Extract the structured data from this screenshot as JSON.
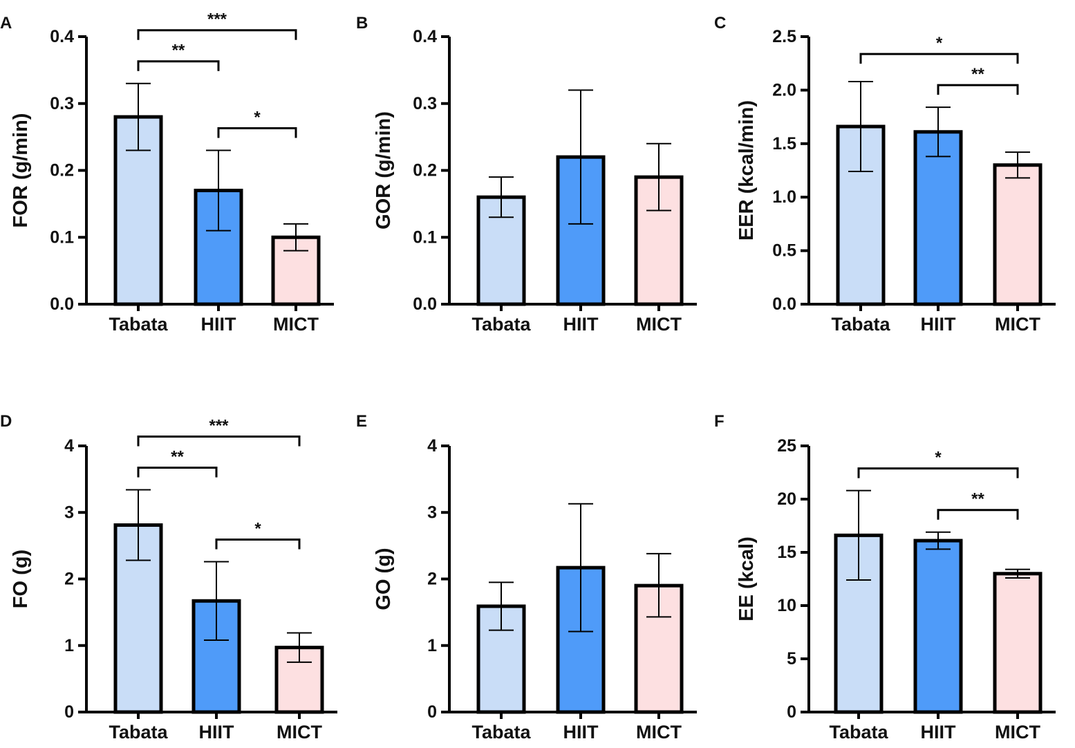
{
  "colors": {
    "tabata": "#c9ddf7",
    "hiit": "#4f9bf9",
    "mict": "#fde0e1",
    "stroke": "#000000"
  },
  "chart_data": [
    {
      "panel": "A",
      "type": "bar",
      "categories": [
        "Tabata",
        "HIIT",
        "MICT"
      ],
      "values": [
        0.28,
        0.17,
        0.1
      ],
      "error_upper": [
        0.33,
        0.23,
        0.12
      ],
      "error_lower": [
        0.23,
        0.11,
        0.08
      ],
      "ylabel": "FOR  (g/min)",
      "ylim": [
        0,
        0.4
      ],
      "yticks": [
        "0.0",
        "0.1",
        "0.2",
        "0.3",
        "0.4"
      ],
      "tick_values": [
        0,
        0.1,
        0.2,
        0.3,
        0.4
      ],
      "significance": [
        {
          "from": "Tabata",
          "to": "MICT",
          "label": "***"
        },
        {
          "from": "Tabata",
          "to": "HIIT",
          "label": "**"
        },
        {
          "from": "HIIT",
          "to": "MICT",
          "label": "*"
        }
      ]
    },
    {
      "panel": "B",
      "type": "bar",
      "categories": [
        "Tabata",
        "HIIT",
        "MICT"
      ],
      "values": [
        0.16,
        0.22,
        0.19
      ],
      "error_upper": [
        0.19,
        0.32,
        0.24
      ],
      "error_lower": [
        0.13,
        0.12,
        0.14
      ],
      "ylabel": "GOR  (g/min)",
      "ylim": [
        0,
        0.4
      ],
      "yticks": [
        "0.0",
        "0.1",
        "0.2",
        "0.3",
        "0.4"
      ],
      "tick_values": [
        0,
        0.1,
        0.2,
        0.3,
        0.4
      ],
      "significance": []
    },
    {
      "panel": "C",
      "type": "bar",
      "categories": [
        "Tabata",
        "HIIT",
        "MICT"
      ],
      "values": [
        1.66,
        1.61,
        1.3
      ],
      "error_upper": [
        2.08,
        1.84,
        1.42
      ],
      "error_lower": [
        1.24,
        1.38,
        1.18
      ],
      "ylabel": "EER  (kcal/min)",
      "ylim": [
        0,
        2.5
      ],
      "yticks": [
        "0.0",
        "0.5",
        "1.0",
        "1.5",
        "2.0",
        "2.5"
      ],
      "tick_values": [
        0,
        0.5,
        1.0,
        1.5,
        2.0,
        2.5
      ],
      "significance": [
        {
          "from": "Tabata",
          "to": "MICT",
          "label": "*"
        },
        {
          "from": "HIIT",
          "to": "MICT",
          "label": "**"
        }
      ]
    },
    {
      "panel": "D",
      "type": "bar",
      "categories": [
        "Tabata",
        "HIIT",
        "MICT"
      ],
      "values": [
        2.81,
        1.67,
        0.97
      ],
      "error_upper": [
        3.34,
        2.26,
        1.19
      ],
      "error_lower": [
        2.28,
        1.08,
        0.75
      ],
      "ylabel": "FO  (g)",
      "ylim": [
        0,
        4
      ],
      "yticks": [
        "0",
        "1",
        "2",
        "3",
        "4"
      ],
      "tick_values": [
        0,
        1,
        2,
        3,
        4
      ],
      "significance": [
        {
          "from": "Tabata",
          "to": "MICT",
          "label": "***"
        },
        {
          "from": "Tabata",
          "to": "HIIT",
          "label": "**"
        },
        {
          "from": "HIIT",
          "to": "MICT",
          "label": "*"
        }
      ]
    },
    {
      "panel": "E",
      "type": "bar",
      "categories": [
        "Tabata",
        "HIIT",
        "MICT"
      ],
      "values": [
        1.59,
        2.17,
        1.9
      ],
      "error_upper": [
        1.95,
        3.13,
        2.38
      ],
      "error_lower": [
        1.23,
        1.21,
        1.43
      ],
      "ylabel": "GO  (g)",
      "ylim": [
        0,
        4
      ],
      "yticks": [
        "0",
        "1",
        "2",
        "3",
        "4"
      ],
      "tick_values": [
        0,
        1,
        2,
        3,
        4
      ],
      "significance": []
    },
    {
      "panel": "F",
      "type": "bar",
      "categories": [
        "Tabata",
        "HIIT",
        "MICT"
      ],
      "values": [
        16.6,
        16.1,
        13.0
      ],
      "error_upper": [
        20.8,
        16.9,
        13.4
      ],
      "error_lower": [
        12.4,
        15.3,
        12.6
      ],
      "ylabel": "EE  (kcal)",
      "ylim": [
        0,
        25
      ],
      "yticks": [
        "0",
        "5",
        "10",
        "15",
        "20",
        "25"
      ],
      "tick_values": [
        0,
        5,
        10,
        15,
        20,
        25
      ],
      "significance": [
        {
          "from": "Tabata",
          "to": "MICT",
          "label": "*"
        },
        {
          "from": "HIIT",
          "to": "MICT",
          "label": "**"
        }
      ]
    }
  ]
}
